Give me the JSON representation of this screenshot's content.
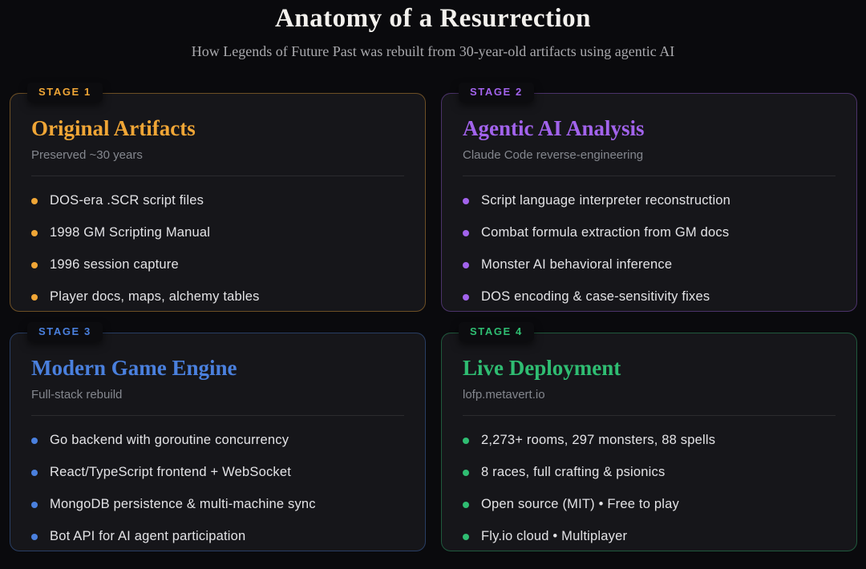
{
  "header": {
    "title": "Anatomy of a Resurrection",
    "subtitle": "How Legends of Future Past was rebuilt from 30-year-old artifacts using agentic AI"
  },
  "cards": [
    {
      "stage_label": "STAGE 1",
      "title": "Original Artifacts",
      "subtitle": "Preserved ~30 years",
      "accent": "#f0a636",
      "accent_border": "rgba(240,166,54,0.40)",
      "items": [
        "DOS-era .SCR script files",
        "1998 GM Scripting Manual",
        "1996 session capture",
        "Player docs, maps, alchemy tables"
      ]
    },
    {
      "stage_label": "STAGE 2",
      "title": "Agentic AI Analysis",
      "subtitle": "Claude Code reverse-engineering",
      "accent": "#a263ec",
      "accent_border": "rgba(162,99,236,0.38)",
      "items": [
        "Script language interpreter reconstruction",
        "Combat formula extraction from GM docs",
        "Monster AI behavioral inference",
        "DOS encoding & case-sensitivity fixes"
      ]
    },
    {
      "stage_label": "STAGE 3",
      "title": "Modern Game Engine",
      "subtitle": "Full-stack rebuild",
      "accent": "#4a80de",
      "accent_border": "rgba(74,128,222,0.38)",
      "items": [
        "Go backend with goroutine concurrency",
        "React/TypeScript frontend + WebSocket",
        "MongoDB persistence & multi-machine sync",
        "Bot API for AI agent participation"
      ]
    },
    {
      "stage_label": "STAGE 4",
      "title": "Live Deployment",
      "subtitle": "lofp.metavert.io",
      "accent": "#2fbd72",
      "accent_border": "rgba(47,189,114,0.40)",
      "items": [
        "2,273+ rooms, 297 monsters, 88 spells",
        "8 races, full crafting & psionics",
        "Open source (MIT) • Free to play",
        "Fly.io cloud • Multiplayer"
      ]
    }
  ]
}
